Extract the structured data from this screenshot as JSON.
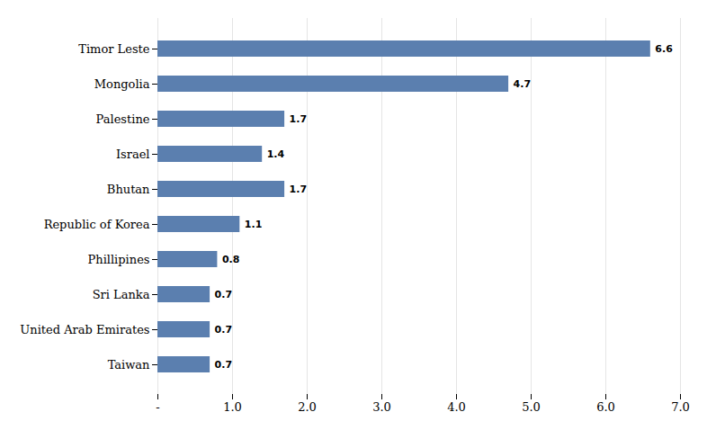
{
  "chart_data": {
    "type": "bar",
    "orientation": "horizontal",
    "categories": [
      "Taiwan",
      "United Arab Emirates",
      "Sri Lanka",
      "Phillipines",
      "Republic of Korea",
      "Bhutan",
      "Israel",
      "Palestine",
      "Mongolia",
      "Timor Leste"
    ],
    "values": [
      0.7,
      0.7,
      0.7,
      0.8,
      1.1,
      1.7,
      1.4,
      1.7,
      4.7,
      6.6
    ],
    "color": "#5b7faf",
    "xlim": [
      0,
      7.0
    ],
    "xticks": [
      {
        "value": 0,
        "label": "-"
      },
      {
        "value": 1.0,
        "label": "1.0"
      },
      {
        "value": 2.0,
        "label": "2.0"
      },
      {
        "value": 3.0,
        "label": "3.0"
      },
      {
        "value": 4.0,
        "label": "4.0"
      },
      {
        "value": 5.0,
        "label": "5.0"
      },
      {
        "value": 6.0,
        "label": "6.0"
      },
      {
        "value": 7.0,
        "label": "7.0"
      }
    ],
    "grid": true,
    "data_labels": true
  }
}
